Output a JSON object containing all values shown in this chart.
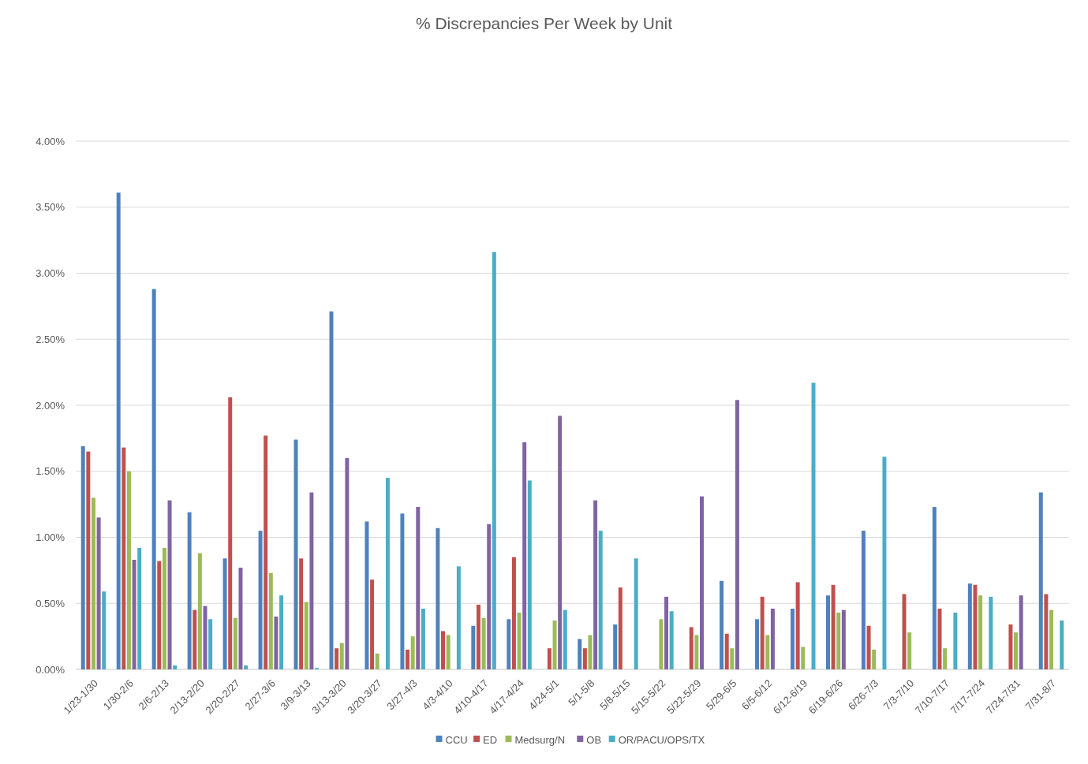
{
  "chart_data": {
    "type": "bar",
    "title": "% Discrepancies Per Week by Unit",
    "categories": [
      "1/23-1/30",
      "1/30-2/6",
      "2/6-2/13",
      "2/13-2/20",
      "2/20-2/27",
      "2/27-3/6",
      "3/9-3/13",
      "3/13-3/20",
      "3/20-3/27",
      "3/27-4/3",
      "4/3-4/10",
      "4/10-4/17",
      "4/17-4/24",
      "4/24-5/1",
      "5/1-5/8",
      "5/8-5/15",
      "5/15-5/22",
      "5/22-5/29",
      "5/29-6/5",
      "6/5-6/12",
      "6/12-6/19",
      "6/19-6/26",
      "6/26-7/3",
      "7/3-7/10",
      "7/10-7/17",
      "7/17-7/24",
      "7/24-7/31",
      "7/31-8/7"
    ],
    "series": [
      {
        "name": "CCU",
        "color": "#4f81bd",
        "values": [
          1.69,
          3.61,
          2.88,
          1.19,
          0.84,
          1.05,
          1.74,
          2.71,
          1.12,
          1.18,
          1.07,
          0.33,
          0.38,
          null,
          0.23,
          0.34,
          null,
          null,
          0.67,
          0.38,
          0.46,
          0.56,
          1.05,
          null,
          1.23,
          0.65,
          null,
          1.34
        ]
      },
      {
        "name": "ED",
        "color": "#c0504d",
        "values": [
          1.65,
          1.68,
          0.82,
          0.45,
          2.06,
          1.77,
          0.84,
          0.16,
          0.68,
          0.15,
          0.29,
          0.49,
          0.85,
          0.16,
          0.16,
          0.62,
          null,
          0.32,
          0.27,
          0.55,
          0.66,
          0.64,
          0.33,
          0.57,
          0.46,
          0.64,
          0.34,
          0.57
        ]
      },
      {
        "name": "Medsurg/N",
        "color": "#9bbb59",
        "values": [
          1.3,
          1.5,
          0.92,
          0.88,
          0.39,
          0.73,
          0.51,
          0.2,
          0.12,
          0.25,
          0.26,
          0.39,
          0.43,
          0.37,
          0.26,
          null,
          0.38,
          0.26,
          0.16,
          0.26,
          0.17,
          0.43,
          0.15,
          0.28,
          0.16,
          0.56,
          0.28,
          0.45
        ]
      },
      {
        "name": "OB",
        "color": "#8064a2",
        "values": [
          1.15,
          0.83,
          1.28,
          0.48,
          0.77,
          0.4,
          1.34,
          1.6,
          null,
          1.23,
          null,
          1.1,
          1.72,
          1.92,
          1.28,
          null,
          0.55,
          1.31,
          2.04,
          0.46,
          null,
          0.45,
          null,
          null,
          null,
          null,
          0.56,
          null
        ]
      },
      {
        "name": "OR/PACU/OPS/TX",
        "color": "#4bacc6",
        "values": [
          0.59,
          0.92,
          0.03,
          0.38,
          0.03,
          0.56,
          0.01,
          null,
          1.45,
          0.46,
          0.78,
          3.16,
          1.43,
          0.45,
          1.05,
          0.84,
          0.44,
          null,
          null,
          null,
          2.17,
          null,
          1.61,
          null,
          0.43,
          0.55,
          null,
          0.37
        ]
      }
    ],
    "ylim": [
      0,
      4
    ],
    "yticks": [
      {
        "value": 0,
        "label": "0.00%"
      },
      {
        "value": 0.5,
        "label": "0.50%"
      },
      {
        "value": 1,
        "label": "1.00%"
      },
      {
        "value": 1.5,
        "label": "1.50%"
      },
      {
        "value": 2,
        "label": "2.00%"
      },
      {
        "value": 2.5,
        "label": "2.50%"
      },
      {
        "value": 3,
        "label": "3.00%"
      },
      {
        "value": 3.5,
        "label": "3.50%"
      },
      {
        "value": 4,
        "label": "4.00%"
      }
    ],
    "grid": "y",
    "legend": "bottom"
  }
}
